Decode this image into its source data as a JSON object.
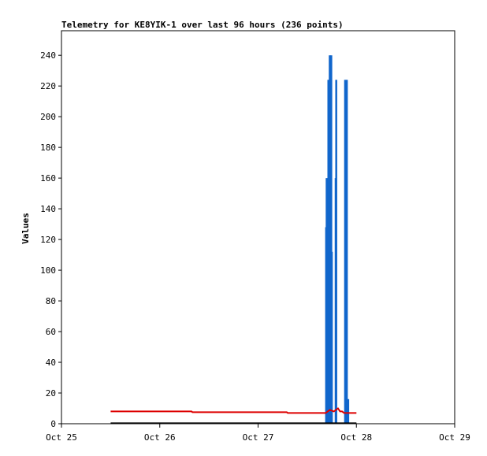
{
  "chart_data": {
    "type": "line",
    "title": "Telemetry for KE8YIK-1 over last 96 hours (236 points)",
    "xlabel": "",
    "ylabel": "Values",
    "x_ticks": [
      "Oct 25",
      "Oct 26",
      "Oct 27",
      "Oct 28",
      "Oct 29"
    ],
    "xlim": [
      "Oct 25 00:00",
      "Oct 29 00:00"
    ],
    "y_ticks": [
      0,
      20,
      40,
      60,
      80,
      100,
      120,
      140,
      160,
      180,
      200,
      220,
      240
    ],
    "ylim": [
      0,
      256
    ],
    "grid": false,
    "legend": "none",
    "series": [
      {
        "color": "#1166cc",
        "style": "spikes",
        "points": [
          [
            "Oct 27 16:37",
            128
          ],
          [
            "Oct 27 16:45",
            160
          ],
          [
            "Oct 27 16:50",
            128
          ],
          [
            "Oct 27 17:00",
            112
          ],
          [
            "Oct 27 17:10",
            224
          ],
          [
            "Oct 27 17:20",
            112
          ],
          [
            "Oct 27 17:30",
            240
          ],
          [
            "Oct 27 17:38",
            112
          ],
          [
            "Oct 27 17:45",
            180
          ],
          [
            "Oct 27 17:52",
            240
          ],
          [
            "Oct 27 18:00",
            112
          ],
          [
            "Oct 27 18:05",
            0
          ],
          [
            "Oct 27 18:57",
            160
          ],
          [
            "Oct 27 19:05",
            224
          ],
          [
            "Oct 27 19:10",
            0
          ],
          [
            "Oct 27 21:15",
            224
          ],
          [
            "Oct 27 21:25",
            0
          ],
          [
            "Oct 27 21:40",
            224
          ],
          [
            "Oct 27 21:50",
            16
          ],
          [
            "Oct 27 22:00",
            16
          ],
          [
            "Oct 27 22:05",
            0
          ]
        ]
      },
      {
        "color": "#dd0000",
        "style": "line",
        "points": [
          [
            "Oct 25 12:00",
            8
          ],
          [
            "Oct 26 07:45",
            8
          ],
          [
            "Oct 26 08:00",
            7.5
          ],
          [
            "Oct 27 07:00",
            7.5
          ],
          [
            "Oct 27 07:15",
            7
          ],
          [
            "Oct 27 16:30",
            7
          ],
          [
            "Oct 27 17:30",
            9
          ],
          [
            "Oct 27 18:30",
            8
          ],
          [
            "Oct 27 19:30",
            10
          ],
          [
            "Oct 27 20:00",
            8
          ],
          [
            "Oct 27 20:30",
            8
          ],
          [
            "Oct 27 21:00",
            7
          ],
          [
            "Oct 28 00:00",
            7
          ]
        ]
      },
      {
        "color": "#000000",
        "style": "line",
        "points": [
          [
            "Oct 25 12:00",
            0.3
          ],
          [
            "Oct 28 00:00",
            0.3
          ]
        ]
      }
    ]
  }
}
